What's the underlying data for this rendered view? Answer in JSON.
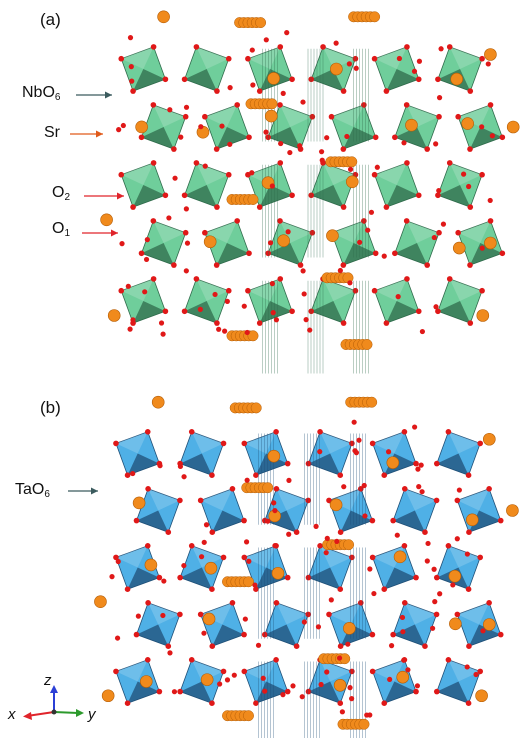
{
  "panels": [
    {
      "label": "(a)",
      "polyhedron_color": "#6fce9b",
      "polyhedron_dark": "#2f6b4b",
      "callouts": [
        {
          "base": "NbO",
          "sub": "6",
          "arrow_color": "#3b5b5e"
        },
        {
          "base": "Sr",
          "sub": "",
          "arrow_color": "#e05a1a"
        },
        {
          "base": "O",
          "sub": "2",
          "arrow_color": "#e0242b"
        },
        {
          "base": "O",
          "sub": "1",
          "arrow_color": "#e0242b"
        }
      ]
    },
    {
      "label": "(b)",
      "polyhedron_color": "#4fb0e6",
      "polyhedron_dark": "#1f4f77",
      "callouts": [
        {
          "base": "TaO",
          "sub": "6",
          "arrow_color": "#3b5b5e"
        }
      ]
    }
  ],
  "atom_colors": {
    "sr": "#f08a1c",
    "oxygen": "#e01818"
  },
  "axes": {
    "z": {
      "label": "z",
      "color": "#2b3fd6"
    },
    "x": {
      "label": "x",
      "color": "#e0242b"
    },
    "y": {
      "label": "y",
      "color": "#2c9a2c"
    }
  }
}
